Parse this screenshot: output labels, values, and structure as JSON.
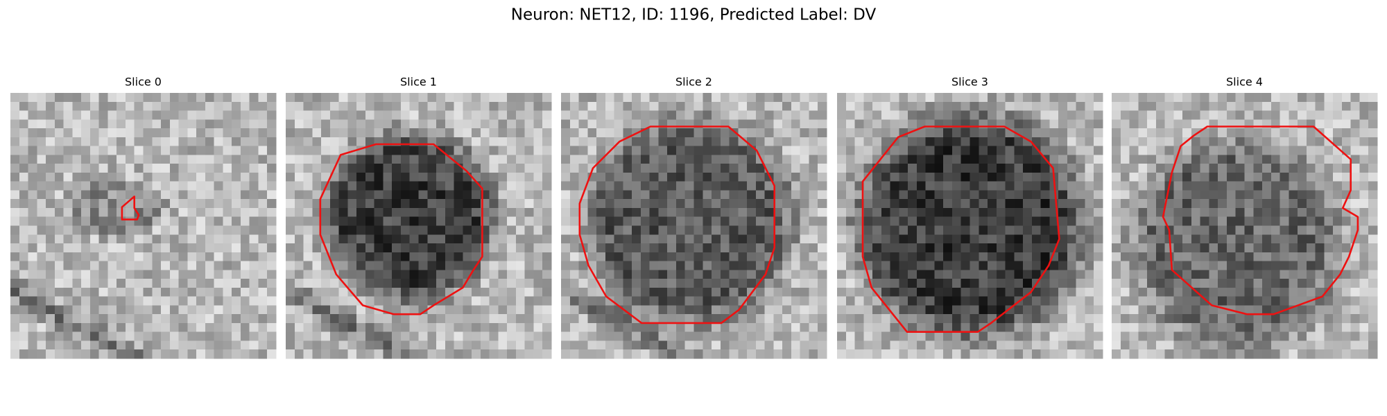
{
  "figure": {
    "title": "Neuron: NET12, ID: 1196, Predicted Label: DV",
    "panels": [
      {
        "title": "Slice 0"
      },
      {
        "title": "Slice 1"
      },
      {
        "title": "Slice 2"
      },
      {
        "title": "Slice 3"
      },
      {
        "title": "Slice 4"
      }
    ]
  }
}
